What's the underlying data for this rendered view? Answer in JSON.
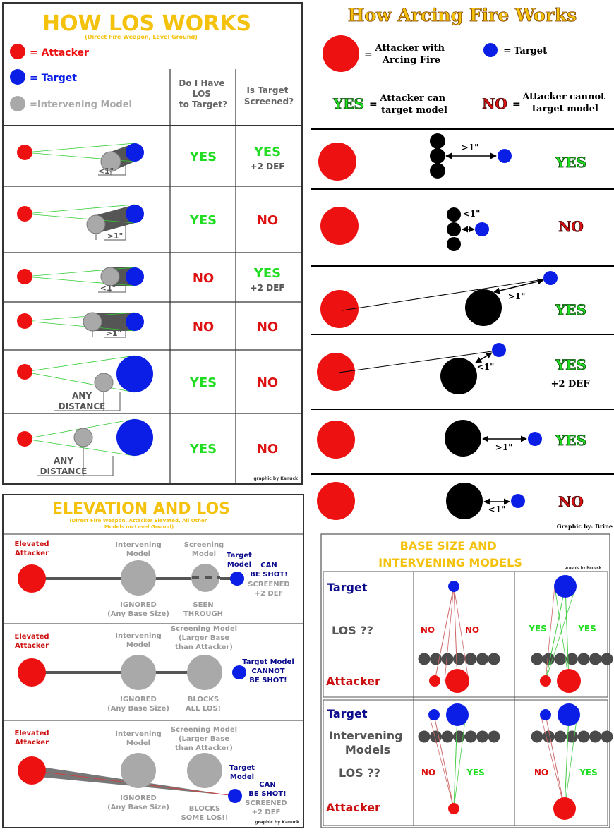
{
  "palette": {
    "red": "#ee1111",
    "blue": "#0a1ee6",
    "grey": "#a9a9a9",
    "dark": "#555555",
    "yes": "#21dd21",
    "no": "#dd1111",
    "gold": "#f4c20d",
    "navy": "#0b0b8c",
    "black": "#000000"
  },
  "los": {
    "title": "HOW LOS WORKS",
    "subtitle": "(Direct Fire Weapon, Level Ground)",
    "legend": {
      "attacker": "= Attacker",
      "target": "= Target",
      "intervening": "=Intervening Model"
    },
    "col_los": [
      "Do I Have",
      "LOS",
      "to Target?"
    ],
    "col_screened": [
      "Is Target",
      "Screened?"
    ],
    "rows": [
      {
        "los": "YES",
        "screened": "YES",
        "extra": "+2 DEF",
        "dist": "<1\""
      },
      {
        "los": "YES",
        "screened": "NO",
        "extra": "",
        "dist": ">1\""
      },
      {
        "los": "NO",
        "screened": "YES",
        "extra": "+2 DEF",
        "dist": "<1\""
      },
      {
        "los": "NO",
        "screened": "NO",
        "extra": "",
        "dist": ">1\""
      },
      {
        "los": "YES",
        "screened": "NO",
        "extra": "",
        "dist": "ANY DISTANCE"
      },
      {
        "los": "YES",
        "screened": "NO",
        "extra": "",
        "dist": "ANY DISTANCE"
      }
    ],
    "credit": "graphic by Kanuck"
  },
  "arc": {
    "title": "How Arcing Fire Works",
    "legend_attacker": [
      "Attacker with",
      "Arcing Fire"
    ],
    "legend_target": "Target",
    "legend_yes_word": "YES",
    "legend_yes_text": [
      "Attacker can",
      "target model"
    ],
    "legend_no_word": "NO",
    "legend_no_text": [
      "Attacker cannot",
      "target model"
    ],
    "eq": "=",
    "rows": [
      {
        "result": "YES",
        "extra": "",
        "dist": ">1\""
      },
      {
        "result": "NO",
        "extra": "",
        "dist": "<1\""
      },
      {
        "result": "YES",
        "extra": "",
        "dist": ">1\""
      },
      {
        "result": "YES",
        "extra": "+2 DEF",
        "dist": "<1\""
      },
      {
        "result": "YES",
        "extra": "",
        "dist": ">1\""
      },
      {
        "result": "NO",
        "extra": "",
        "dist": "<1\""
      }
    ],
    "credit": "Graphic by: Brine"
  },
  "elev": {
    "title": "ELEVATION AND LOS",
    "subtitle": [
      "(Direct Fire Weapon, Attacker Elevated, All Other",
      "Models on Level Ground)"
    ],
    "elevated": [
      "Elevated",
      "Attacker"
    ],
    "intervening": [
      "Intervening",
      "Model"
    ],
    "ignored": [
      "IGNORED",
      "(Any Base Size)"
    ],
    "row1": {
      "screening": [
        "Screening",
        "Model"
      ],
      "seen": [
        "SEEN",
        "THROUGH"
      ],
      "target": [
        "Target",
        "Model"
      ],
      "can": [
        "CAN",
        "BE SHOT!"
      ],
      "screened": [
        "SCREENED",
        "+2 DEF"
      ]
    },
    "row2": {
      "screening": [
        "Screening Model",
        "(Larger Base",
        "than Attacker)"
      ],
      "blocks": [
        "BLOCKS",
        "ALL LOS!"
      ],
      "target": [
        "Target Model",
        "CANNOT",
        "BE SHOT!"
      ]
    },
    "row3": {
      "screening": [
        "Screening Model",
        "(Larger Base",
        "than Attacker)"
      ],
      "blocks": [
        "BLOCKS",
        "SOME LOS!!"
      ],
      "target": [
        "Target",
        "Model"
      ],
      "can": [
        "CAN",
        "BE SHOT!"
      ],
      "screened": [
        "SCREENED",
        "+2 DEF"
      ]
    },
    "credit": "graphic by Kanuck"
  },
  "base": {
    "title": [
      "BASE SIZE AND",
      "INTERVENING MODELS"
    ],
    "credit": "graphic by Kanuck",
    "top": {
      "target": "Target",
      "los": "LOS ??",
      "attacker": "Attacker",
      "p1": {
        "left": "NO",
        "right": "NO"
      },
      "p2": {
        "left": "YES",
        "right": "YES"
      }
    },
    "bottom": {
      "target": "Target",
      "models": [
        "Intervening",
        "Models"
      ],
      "los": "LOS ??",
      "attacker": "Attacker",
      "p1": {
        "left": "NO",
        "right": "YES"
      },
      "p2": {
        "left": "NO",
        "right": "YES"
      }
    }
  }
}
